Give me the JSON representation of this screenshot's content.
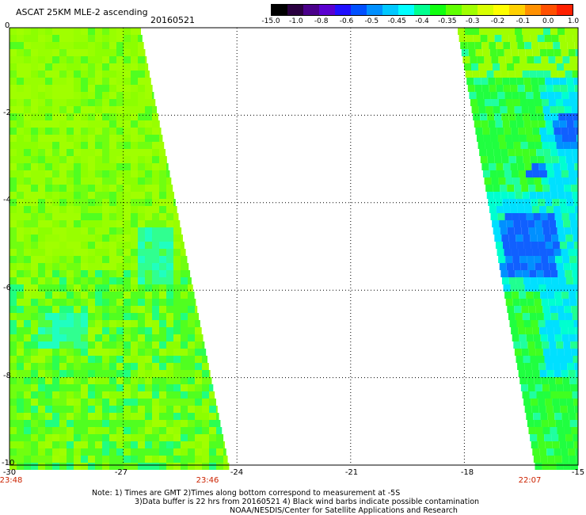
{
  "title": "ASCAT 25KM MLE-2 ascending",
  "date": "20160521",
  "colorbar": {
    "labels": [
      "-15.0",
      "-1.0",
      "-0.8",
      "-0.6",
      "-0.5",
      "-0.45",
      "-0.4",
      "-0.35",
      "-0.3",
      "-0.2",
      "-0.1",
      "0.0",
      "1.0"
    ],
    "colors": [
      "#000000",
      "#2a0040",
      "#4a008a",
      "#5a00d0",
      "#2010ff",
      "#0050ff",
      "#0090ff",
      "#00c8ff",
      "#00ffff",
      "#00ff90",
      "#10ff10",
      "#60ff00",
      "#a0ff00",
      "#d8ff00",
      "#ffff00",
      "#ffd000",
      "#ff9000",
      "#ff5000",
      "#ff2000"
    ]
  },
  "axes": {
    "y_ticks": [
      "0",
      "-2",
      "-4",
      "-6",
      "-8",
      "-10"
    ],
    "x_ticks": [
      "-30",
      "-27",
      "-24",
      "-21",
      "-18",
      "-15"
    ]
  },
  "times": [
    "23:48",
    "23:46",
    "22:07"
  ],
  "notes": [
    "Note: 1) Times are GMT 2)Times along bottom correspond to measurement at -5S",
    "3)Data buffer is 22 hrs from 20160521 4) Black wind barbs indicate possible contamination",
    "NOAA/NESDIS/Center for Satellite Applications and Research"
  ],
  "chart_data": {
    "type": "heatmap",
    "xlim": [
      -30,
      -15
    ],
    "ylim": [
      -10,
      0
    ],
    "swaths": [
      {
        "name": "west",
        "x_range_at_lat": [
          [
            0,
            -30,
            -26.0
          ],
          [
            -10,
            -30,
            -24.2
          ]
        ],
        "dominant_value": -0.2
      },
      {
        "name": "east",
        "x_range_at_lat": [
          [
            0,
            -18.0,
            -15
          ],
          [
            -10,
            -16.5,
            -15
          ]
        ],
        "dominant_value": -0.35
      }
    ]
  }
}
